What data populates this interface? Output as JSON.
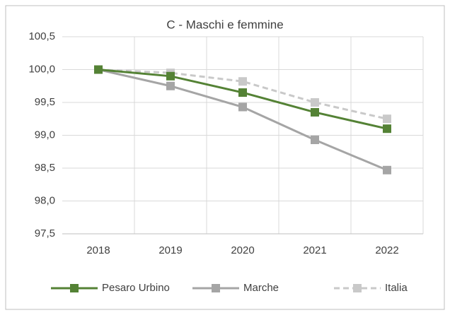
{
  "chart_data": {
    "type": "line",
    "title": "C - Maschi e femmine",
    "categories": [
      "2018",
      "2019",
      "2020",
      "2021",
      "2022"
    ],
    "series": [
      {
        "name": "Pesaro Urbino",
        "color": "#548235",
        "dash": false,
        "values": [
          100,
          99.9,
          99.65,
          99.35,
          99.1
        ]
      },
      {
        "name": "Marche",
        "color": "#a5a5a5",
        "dash": false,
        "values": [
          100,
          99.75,
          99.43,
          98.93,
          98.47
        ]
      },
      {
        "name": "Italia",
        "color": "#c9c9c9",
        "dash": true,
        "values": [
          100,
          99.95,
          99.82,
          99.5,
          99.25
        ]
      }
    ],
    "ylim": [
      97.5,
      100.5
    ],
    "yticks": [
      {
        "value": 97.5,
        "label": "97,5"
      },
      {
        "value": 98,
        "label": "98,0"
      },
      {
        "value": 98.5,
        "label": "98,5"
      },
      {
        "value": 99,
        "label": "99,0"
      },
      {
        "value": 99.5,
        "label": "99,5"
      },
      {
        "value": 100,
        "label": "100,0"
      },
      {
        "value": 100.5,
        "label": "100,5"
      }
    ],
    "grid": true,
    "legend": "bottom"
  }
}
